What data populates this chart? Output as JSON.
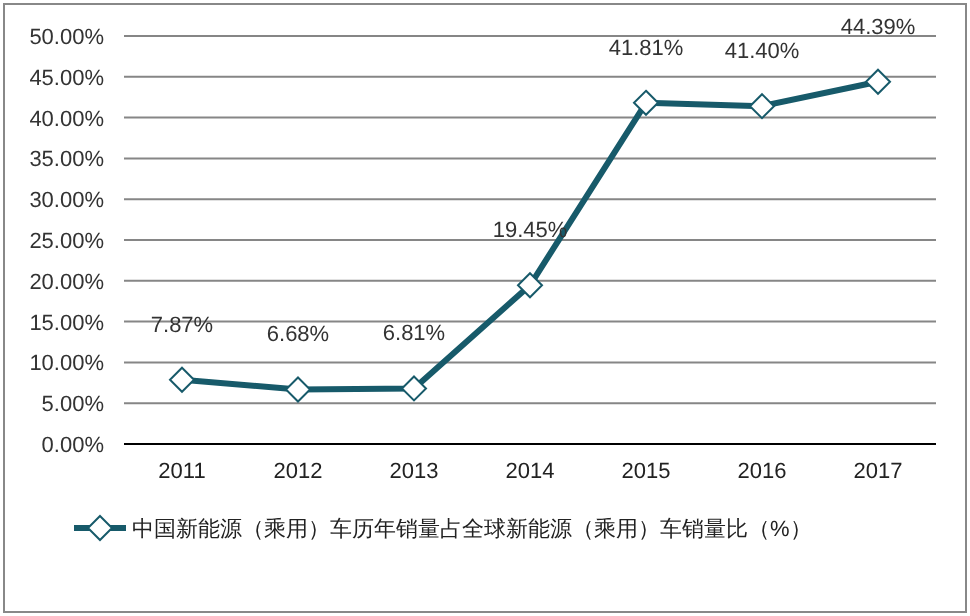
{
  "chart_data": {
    "type": "line",
    "categories": [
      "2011",
      "2012",
      "2013",
      "2014",
      "2015",
      "2016",
      "2017"
    ],
    "series": [
      {
        "name": "中国新能源（乘用）车历年销量占全球新能源（乘用）车销量比（%）",
        "color": "#175a6a",
        "values": [
          7.87,
          6.68,
          6.81,
          19.45,
          41.81,
          41.4,
          44.39
        ],
        "value_labels": [
          "7.87%",
          "6.68%",
          "6.81%",
          "19.45%",
          "41.81%",
          "41.40%",
          "44.39%"
        ]
      }
    ],
    "ylim": [
      0,
      50
    ],
    "yticks": [
      {
        "value": 0,
        "label": "0.00%"
      },
      {
        "value": 5,
        "label": "5.00%"
      },
      {
        "value": 10,
        "label": "10.00%"
      },
      {
        "value": 15,
        "label": "15.00%"
      },
      {
        "value": 20,
        "label": "20.00%"
      },
      {
        "value": 25,
        "label": "25.00%"
      },
      {
        "value": 30,
        "label": "30.00%"
      },
      {
        "value": 35,
        "label": "35.00%"
      },
      {
        "value": 40,
        "label": "40.00%"
      },
      {
        "value": 45,
        "label": "45.00%"
      },
      {
        "value": 50,
        "label": "50.00%"
      }
    ],
    "grid": "y",
    "legend": "bottom",
    "marker": "diamond",
    "line_style": "solid"
  }
}
